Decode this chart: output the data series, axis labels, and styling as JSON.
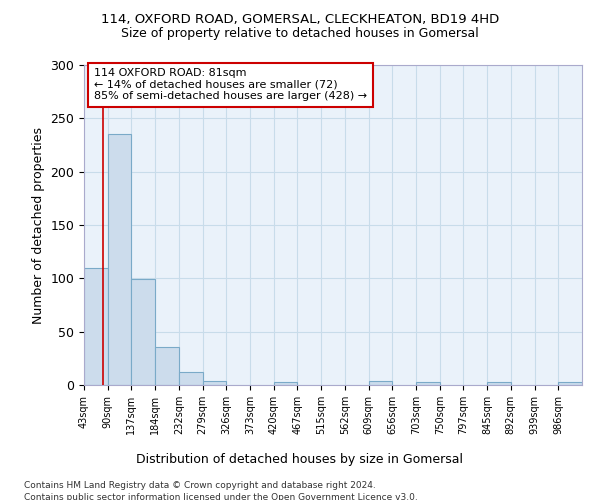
{
  "title1": "114, OXFORD ROAD, GOMERSAL, CLECKHEATON, BD19 4HD",
  "title2": "Size of property relative to detached houses in Gomersal",
  "xlabel": "Distribution of detached houses by size in Gomersal",
  "ylabel": "Number of detached properties",
  "bar_color": "#ccdcec",
  "bar_edge_color": "#7aaac8",
  "categories": [
    "43sqm",
    "90sqm",
    "137sqm",
    "184sqm",
    "232sqm",
    "279sqm",
    "326sqm",
    "373sqm",
    "420sqm",
    "467sqm",
    "515sqm",
    "562sqm",
    "609sqm",
    "656sqm",
    "703sqm",
    "750sqm",
    "797sqm",
    "845sqm",
    "892sqm",
    "939sqm",
    "986sqm"
  ],
  "values": [
    110,
    235,
    99,
    36,
    12,
    4,
    0,
    0,
    3,
    0,
    0,
    0,
    4,
    0,
    3,
    0,
    0,
    3,
    0,
    0,
    3
  ],
  "property_line_x": 81,
  "annotation_text": "114 OXFORD ROAD: 81sqm\n← 14% of detached houses are smaller (72)\n85% of semi-detached houses are larger (428) →",
  "annotation_box_color": "#ffffff",
  "annotation_border_color": "#cc0000",
  "vline_color": "#cc0000",
  "grid_color": "#c8dcea",
  "background_color": "#eaf2fa",
  "footer_line1": "Contains HM Land Registry data © Crown copyright and database right 2024.",
  "footer_line2": "Contains public sector information licensed under the Open Government Licence v3.0.",
  "ylim": [
    0,
    300
  ],
  "bin_width": 47
}
